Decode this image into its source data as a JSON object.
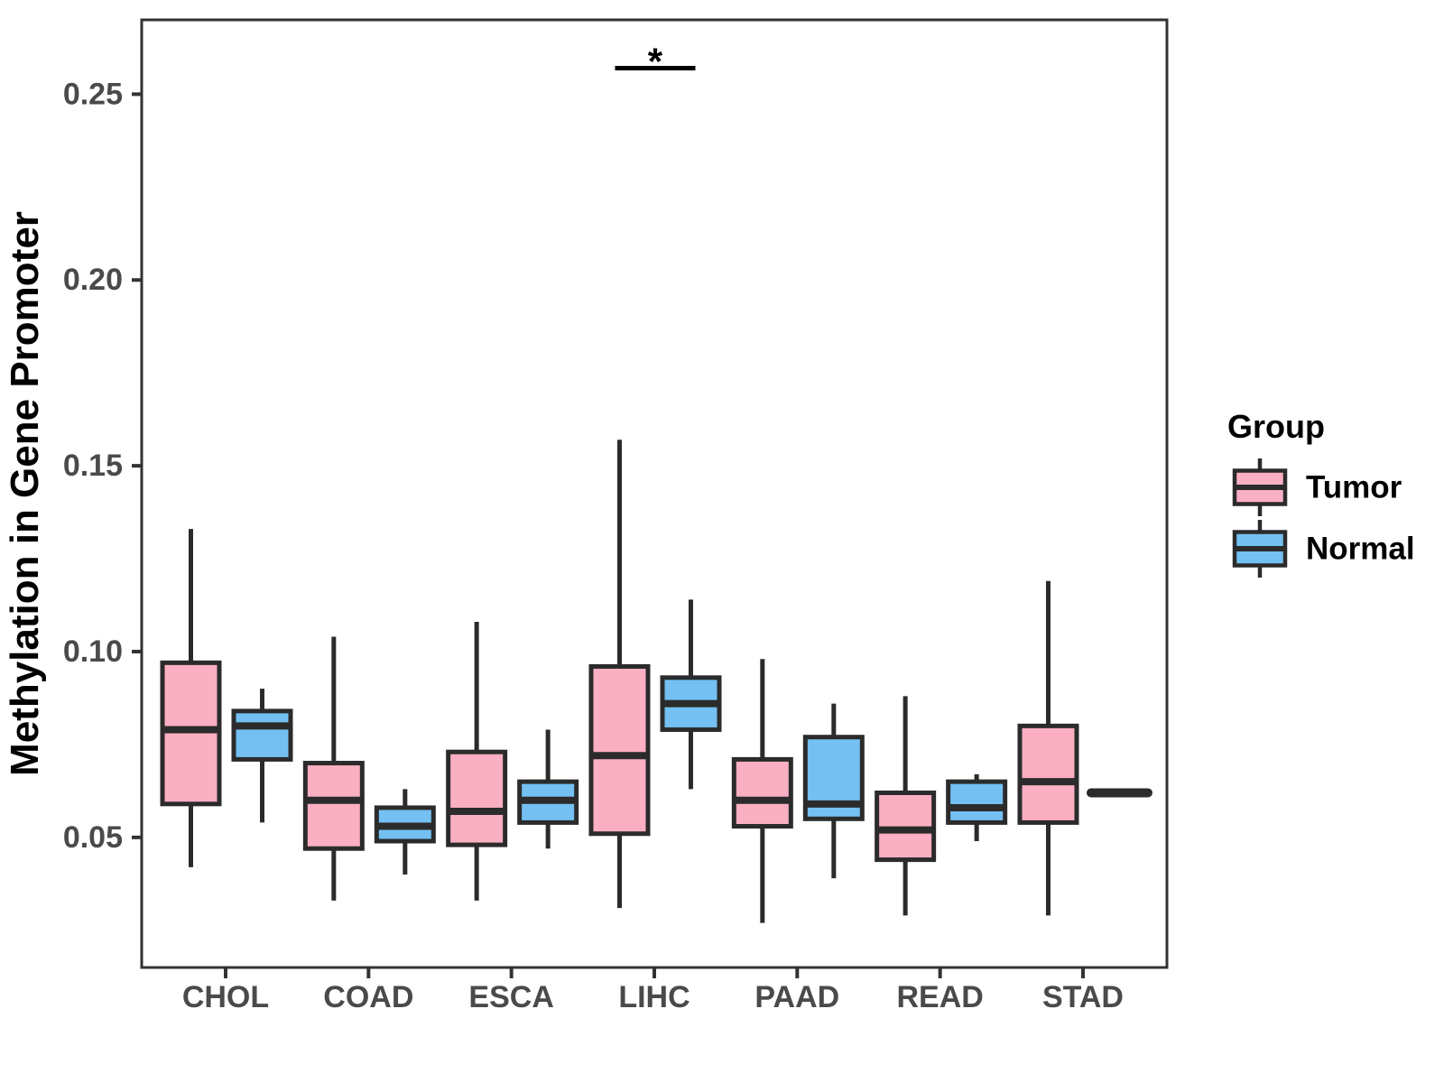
{
  "chart_data": {
    "type": "boxplot",
    "title": "",
    "xlabel": "",
    "ylabel": "Methylation in Gene Promoter",
    "ylim": [
      0.015,
      0.27
    ],
    "grid": "off",
    "legend_position": "right",
    "y_ticks": [
      0.05,
      0.1,
      0.15,
      0.2,
      0.25
    ],
    "y_tick_labels": [
      "0.05",
      "0.10",
      "0.15",
      "0.20",
      "0.25"
    ],
    "categories": [
      "CHOL",
      "COAD",
      "ESCA",
      "LIHC",
      "PAAD",
      "READ",
      "STAD"
    ],
    "legend": {
      "title": "Group",
      "entries": [
        {
          "label": "Tumor",
          "color": "#FBAFC2"
        },
        {
          "label": "Normal",
          "color": "#74C0F2"
        }
      ]
    },
    "series": [
      {
        "name": "Tumor",
        "fill": "#FBAFC2",
        "boxes": [
          {
            "low": 0.042,
            "q1": 0.059,
            "median": 0.079,
            "q3": 0.097,
            "high": 0.133
          },
          {
            "low": 0.033,
            "q1": 0.047,
            "median": 0.06,
            "q3": 0.07,
            "high": 0.104
          },
          {
            "low": 0.033,
            "q1": 0.048,
            "median": 0.057,
            "q3": 0.073,
            "high": 0.108
          },
          {
            "low": 0.031,
            "q1": 0.051,
            "median": 0.072,
            "q3": 0.096,
            "high": 0.157
          },
          {
            "low": 0.027,
            "q1": 0.053,
            "median": 0.06,
            "q3": 0.071,
            "high": 0.098
          },
          {
            "low": 0.029,
            "q1": 0.044,
            "median": 0.052,
            "q3": 0.062,
            "high": 0.088
          },
          {
            "low": 0.029,
            "q1": 0.054,
            "median": 0.065,
            "q3": 0.08,
            "high": 0.119
          }
        ]
      },
      {
        "name": "Normal",
        "fill": "#74C0F2",
        "boxes": [
          {
            "low": 0.054,
            "q1": 0.071,
            "median": 0.08,
            "q3": 0.084,
            "high": 0.09
          },
          {
            "low": 0.04,
            "q1": 0.049,
            "median": 0.053,
            "q3": 0.058,
            "high": 0.063
          },
          {
            "low": 0.047,
            "q1": 0.054,
            "median": 0.06,
            "q3": 0.065,
            "high": 0.079
          },
          {
            "low": 0.063,
            "q1": 0.079,
            "median": 0.086,
            "q3": 0.093,
            "high": 0.114
          },
          {
            "low": 0.039,
            "q1": 0.055,
            "median": 0.059,
            "q3": 0.077,
            "high": 0.086
          },
          {
            "low": 0.049,
            "q1": 0.054,
            "median": 0.058,
            "q3": 0.065,
            "high": 0.067
          },
          {
            "low": 0.062,
            "q1": 0.062,
            "median": 0.062,
            "q3": 0.062,
            "high": 0.062
          }
        ]
      }
    ],
    "significance": {
      "category": "LIHC",
      "label": "*",
      "y_value": 0.257
    },
    "style": {
      "box_border": "#2B2B2B",
      "axis_color": "#333333",
      "tick_label_color": "#4A4A4A",
      "title_color": "#000000",
      "background": "#FFFFFF"
    }
  }
}
